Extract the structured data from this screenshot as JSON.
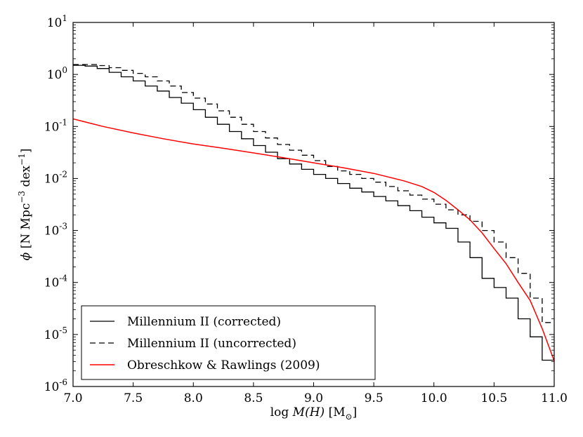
{
  "chart_data": {
    "type": "line",
    "yscale": "log",
    "xlabel_text": "log",
    "xlabel_symbol": "M(H)",
    "xlabel_unit_open": "[M",
    "xlabel_unit_sub": "⊙",
    "xlabel_unit_close": "]",
    "ylabel_symbol": "ϕ",
    "ylabel_unit_a": "[N Mpc",
    "ylabel_unit_a_sup": "−3",
    "ylabel_unit_b": "dex",
    "ylabel_unit_b_sup": "−1",
    "ylabel_unit_close": "]",
    "xlim": [
      7.0,
      11.0
    ],
    "ylim": [
      1e-06,
      10
    ],
    "xticks": [
      {
        "value": 7.0,
        "label": "7.0"
      },
      {
        "value": 7.5,
        "label": "7.5"
      },
      {
        "value": 8.0,
        "label": "8.0"
      },
      {
        "value": 8.5,
        "label": "8.5"
      },
      {
        "value": 9.0,
        "label": "9.0"
      },
      {
        "value": 9.5,
        "label": "9.5"
      },
      {
        "value": 10.0,
        "label": "10.0"
      },
      {
        "value": 10.5,
        "label": "10.5"
      },
      {
        "value": 11.0,
        "label": "11.0"
      }
    ],
    "yticks": [
      {
        "value": 1e-06,
        "base": "10",
        "exp": "-6"
      },
      {
        "value": 1e-05,
        "base": "10",
        "exp": "-5"
      },
      {
        "value": 0.0001,
        "base": "10",
        "exp": "-4"
      },
      {
        "value": 0.001,
        "base": "10",
        "exp": "-3"
      },
      {
        "value": 0.01,
        "base": "10",
        "exp": "-2"
      },
      {
        "value": 0.1,
        "base": "10",
        "exp": "-1"
      },
      {
        "value": 1,
        "base": "10",
        "exp": "0"
      },
      {
        "value": 10,
        "base": "10",
        "exp": "1"
      }
    ],
    "legend_position": "lower-left",
    "series": [
      {
        "name": "Millennium II (corrected)",
        "style": "steps",
        "color": "#000000",
        "dash": "solid",
        "bin_edges": [
          7.0,
          7.1,
          7.2,
          7.3,
          7.4,
          7.5,
          7.6,
          7.7,
          7.8,
          7.9,
          8.0,
          8.1,
          8.2,
          8.3,
          8.4,
          8.5,
          8.6,
          8.7,
          8.8,
          8.9,
          9.0,
          9.1,
          9.2,
          9.3,
          9.4,
          9.5,
          9.6,
          9.7,
          9.8,
          9.9,
          10.0,
          10.1,
          10.2,
          10.3,
          10.4,
          10.5,
          10.6,
          10.7,
          10.8,
          10.9,
          11.0
        ],
        "values": [
          1.5,
          1.45,
          1.3,
          1.1,
          0.9,
          0.75,
          0.6,
          0.48,
          0.36,
          0.28,
          0.21,
          0.15,
          0.11,
          0.08,
          0.058,
          0.043,
          0.032,
          0.024,
          0.019,
          0.015,
          0.012,
          0.01,
          0.008,
          0.0065,
          0.0055,
          0.0045,
          0.0037,
          0.003,
          0.0024,
          0.0018,
          0.0014,
          0.0011,
          0.0006,
          0.0003,
          0.00012,
          8e-05,
          5e-05,
          2e-05,
          9e-06,
          3.2e-06
        ]
      },
      {
        "name": "Millennium II (uncorrected)",
        "style": "steps",
        "color": "#000000",
        "dash": "dashed",
        "bin_edges": [
          7.0,
          7.1,
          7.2,
          7.3,
          7.4,
          7.5,
          7.6,
          7.7,
          7.8,
          7.9,
          8.0,
          8.1,
          8.2,
          8.3,
          8.4,
          8.5,
          8.6,
          8.7,
          8.8,
          8.9,
          9.0,
          9.1,
          9.2,
          9.3,
          9.4,
          9.5,
          9.6,
          9.7,
          9.8,
          9.9,
          10.0,
          10.1,
          10.2,
          10.3,
          10.4,
          10.5,
          10.6,
          10.7,
          10.8,
          10.9,
          11.0
        ],
        "values": [
          1.55,
          1.55,
          1.48,
          1.35,
          1.2,
          1.05,
          0.9,
          0.75,
          0.6,
          0.45,
          0.35,
          0.27,
          0.2,
          0.15,
          0.11,
          0.08,
          0.06,
          0.045,
          0.035,
          0.028,
          0.022,
          0.017,
          0.014,
          0.012,
          0.01,
          0.0085,
          0.007,
          0.0058,
          0.0048,
          0.004,
          0.0032,
          0.0025,
          0.002,
          0.0015,
          0.001,
          0.0006,
          0.0003,
          0.00015,
          5e-05,
          1.7e-05
        ]
      },
      {
        "name": "Obreschkow & Rawlings (2009)",
        "style": "line",
        "color": "#ff0000",
        "dash": "solid",
        "x": [
          7.0,
          7.25,
          7.5,
          7.75,
          8.0,
          8.25,
          8.5,
          8.75,
          9.0,
          9.25,
          9.5,
          9.75,
          9.9,
          10.0,
          10.1,
          10.2,
          10.3,
          10.4,
          10.5,
          10.6,
          10.7,
          10.8,
          10.9,
          11.0
        ],
        "y": [
          0.14,
          0.1,
          0.075,
          0.058,
          0.046,
          0.038,
          0.031,
          0.025,
          0.02,
          0.016,
          0.0125,
          0.009,
          0.007,
          0.0054,
          0.0038,
          0.0025,
          0.0016,
          0.0009,
          0.00045,
          0.00023,
          0.0001,
          4.5e-05,
          1.3e-05,
          3.1e-06
        ]
      }
    ]
  }
}
